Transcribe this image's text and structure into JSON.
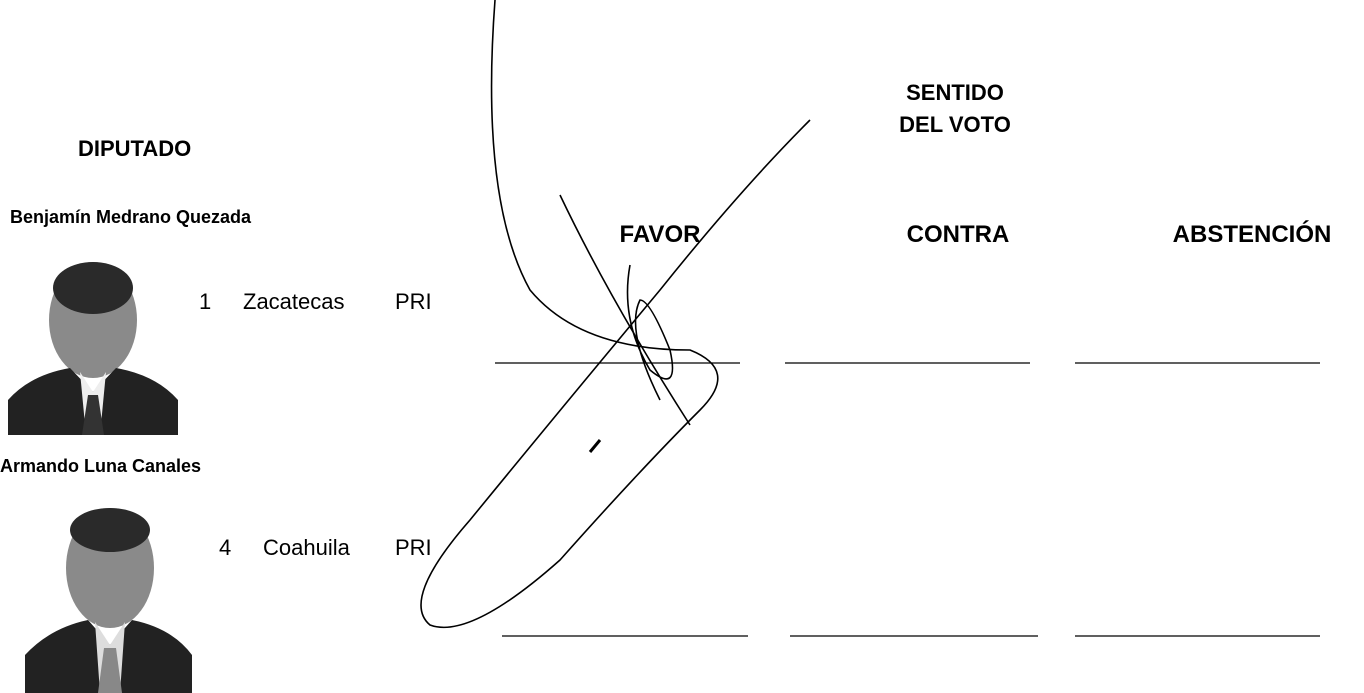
{
  "header": {
    "deputy_column": "DIPUTADO",
    "vote_column": [
      "SENTIDO",
      "DEL VOTO"
    ]
  },
  "vote_options": [
    "FAVOR",
    "CONTRA",
    "ABSTENCIÓN"
  ],
  "deputies": [
    {
      "name": "Benjamín Medrano Quezada",
      "district": 1,
      "state": "Zacatecas",
      "party": "PRI"
    },
    {
      "name": "Armando Luna Canales",
      "district": 4,
      "state": "Coahuila",
      "party": "PRI"
    }
  ]
}
